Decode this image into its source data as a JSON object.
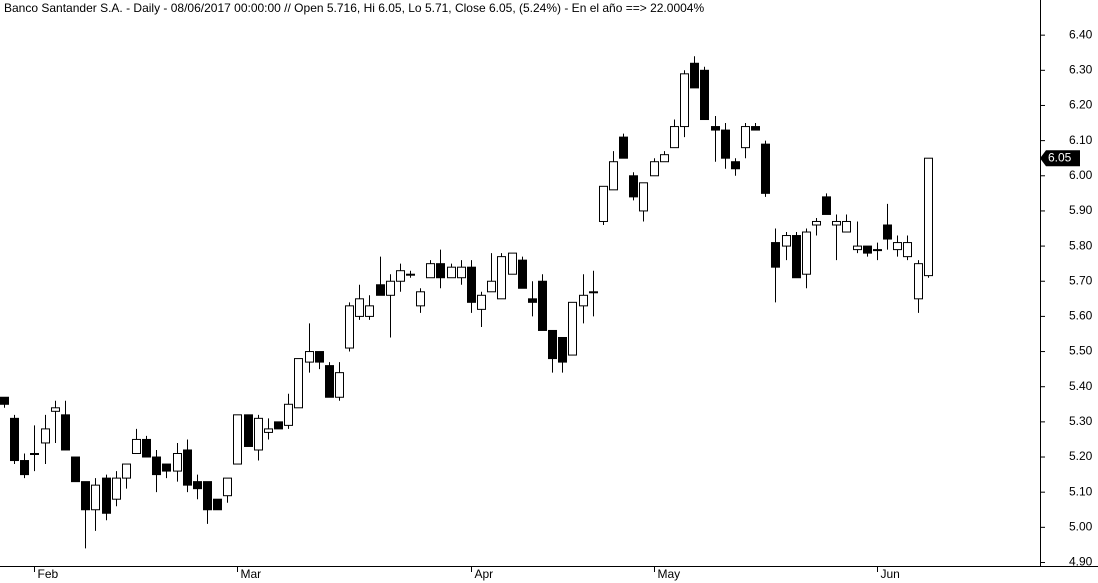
{
  "chart_data": {
    "type": "candlestick",
    "title": "Banco Santander S.A. - Daily - 08/06/2017 00:00:00 // Open 5.716, Hi 6.05, Lo 5.71, Close 6.05, (5.24%) - En el año ==> 22.0004%",
    "categories": [
      null,
      null,
      null,
      "Feb",
      null,
      null,
      null,
      null,
      null,
      null,
      null,
      null,
      null,
      null,
      null,
      null,
      null,
      null,
      null,
      null,
      null,
      null,
      null,
      "Mar",
      null,
      null,
      null,
      null,
      null,
      null,
      null,
      null,
      null,
      null,
      null,
      null,
      null,
      null,
      null,
      null,
      null,
      null,
      null,
      null,
      null,
      null,
      "Apr",
      null,
      null,
      null,
      null,
      null,
      null,
      null,
      null,
      null,
      null,
      null,
      null,
      null,
      null,
      null,
      null,
      null,
      "May",
      null,
      null,
      null,
      null,
      null,
      null,
      null,
      null,
      null,
      null,
      null,
      null,
      null,
      null,
      null,
      null,
      null,
      null,
      null,
      null,
      null,
      "Jun",
      null,
      null,
      null,
      null,
      null
    ],
    "open": [
      5.37,
      5.31,
      5.19,
      5.21,
      5.24,
      5.33,
      5.32,
      5.2,
      5.13,
      5.05,
      5.14,
      5.08,
      5.14,
      5.21,
      5.25,
      5.2,
      5.18,
      5.16,
      5.22,
      5.13,
      5.13,
      5.08,
      5.09,
      5.18,
      5.32,
      5.22,
      5.27,
      5.3,
      5.29,
      5.34,
      5.47,
      5.5,
      5.46,
      5.37,
      5.51,
      5.6,
      5.6,
      5.69,
      5.66,
      5.7,
      5.72,
      5.63,
      5.71,
      5.75,
      5.71,
      5.71,
      5.74,
      5.62,
      5.67,
      5.65,
      5.72,
      5.76,
      5.65,
      5.7,
      5.56,
      5.54,
      5.49,
      5.63,
      5.67,
      5.87,
      5.96,
      6.11,
      6.0,
      5.9,
      6.0,
      6.04,
      6.08,
      6.14,
      6.32,
      6.3,
      6.14,
      6.13,
      6.04,
      6.08,
      6.14,
      6.09,
      5.81,
      5.8,
      5.83,
      5.72,
      5.86,
      5.94,
      5.86,
      5.84,
      5.79,
      5.8,
      5.79,
      5.86,
      5.79,
      5.77,
      5.65,
      5.716
    ],
    "high": [
      5.37,
      5.32,
      5.21,
      5.29,
      5.32,
      5.36,
      5.36,
      5.2,
      5.13,
      5.14,
      5.15,
      5.16,
      5.18,
      5.28,
      5.26,
      5.22,
      5.18,
      5.24,
      5.25,
      5.15,
      5.13,
      5.08,
      5.14,
      5.32,
      5.32,
      5.32,
      5.31,
      5.3,
      5.38,
      5.48,
      5.58,
      5.5,
      5.47,
      5.47,
      5.64,
      5.69,
      5.66,
      5.77,
      5.72,
      5.75,
      5.73,
      5.68,
      5.76,
      5.79,
      5.75,
      5.76,
      5.76,
      5.67,
      5.78,
      5.78,
      5.78,
      5.77,
      5.7,
      5.72,
      5.56,
      5.54,
      5.64,
      5.72,
      5.73,
      5.97,
      6.07,
      6.12,
      6.01,
      5.98,
      6.05,
      6.07,
      6.16,
      6.3,
      6.34,
      6.31,
      6.17,
      6.15,
      6.05,
      6.15,
      6.15,
      6.1,
      5.85,
      5.84,
      5.84,
      5.85,
      5.88,
      5.95,
      5.89,
      5.89,
      5.87,
      5.8,
      5.81,
      5.92,
      5.83,
      5.83,
      5.76,
      6.05
    ],
    "low": [
      5.34,
      5.18,
      5.14,
      5.16,
      5.18,
      5.24,
      5.22,
      5.13,
      4.94,
      4.99,
      5.02,
      5.06,
      5.11,
      5.21,
      5.2,
      5.1,
      5.14,
      5.13,
      5.1,
      5.08,
      5.01,
      5.05,
      5.07,
      5.18,
      5.23,
      5.19,
      5.25,
      5.28,
      5.28,
      5.34,
      5.44,
      5.45,
      5.37,
      5.36,
      5.5,
      5.59,
      5.59,
      5.66,
      5.54,
      5.67,
      5.71,
      5.61,
      5.71,
      5.68,
      5.71,
      5.69,
      5.61,
      5.57,
      5.67,
      5.65,
      5.72,
      5.68,
      5.6,
      5.56,
      5.44,
      5.44,
      5.49,
      5.58,
      5.6,
      5.86,
      5.96,
      6.05,
      5.93,
      5.87,
      6.0,
      6.04,
      6.08,
      6.11,
      6.25,
      6.16,
      6.04,
      6.02,
      6.0,
      6.05,
      6.13,
      5.94,
      5.64,
      5.76,
      5.71,
      5.68,
      5.83,
      5.89,
      5.76,
      5.84,
      5.78,
      5.77,
      5.76,
      5.79,
      5.77,
      5.76,
      5.61,
      5.71
    ],
    "close": [
      5.35,
      5.19,
      5.15,
      5.21,
      5.28,
      5.34,
      5.22,
      5.13,
      5.05,
      5.12,
      5.04,
      5.14,
      5.18,
      5.25,
      5.2,
      5.15,
      5.16,
      5.21,
      5.12,
      5.11,
      5.05,
      5.05,
      5.14,
      5.32,
      5.23,
      5.31,
      5.28,
      5.28,
      5.35,
      5.48,
      5.5,
      5.47,
      5.37,
      5.44,
      5.63,
      5.65,
      5.63,
      5.66,
      5.7,
      5.73,
      5.72,
      5.67,
      5.75,
      5.71,
      5.74,
      5.74,
      5.64,
      5.66,
      5.7,
      5.77,
      5.78,
      5.68,
      5.64,
      5.56,
      5.48,
      5.47,
      5.64,
      5.66,
      5.67,
      5.97,
      6.04,
      6.05,
      5.94,
      5.98,
      6.04,
      6.06,
      6.14,
      6.29,
      6.25,
      6.16,
      6.13,
      6.05,
      6.02,
      6.14,
      6.13,
      5.95,
      5.74,
      5.83,
      5.71,
      5.84,
      5.87,
      5.89,
      5.87,
      5.87,
      5.8,
      5.78,
      5.79,
      5.82,
      5.81,
      5.81,
      5.75,
      6.05
    ],
    "ylim": [
      4.89,
      6.5
    ],
    "yticks": [
      {
        "value": 4.9,
        "label": "4.90"
      },
      {
        "value": 5.0,
        "label": "5.00"
      },
      {
        "value": 5.1,
        "label": "5.10"
      },
      {
        "value": 5.2,
        "label": "5.20"
      },
      {
        "value": 5.3,
        "label": "5.30"
      },
      {
        "value": 5.4,
        "label": "5.40"
      },
      {
        "value": 5.5,
        "label": "5.50"
      },
      {
        "value": 5.6,
        "label": "5.60"
      },
      {
        "value": 5.7,
        "label": "5.70"
      },
      {
        "value": 5.8,
        "label": "5.80"
      },
      {
        "value": 5.9,
        "label": "5.90"
      },
      {
        "value": 6.0,
        "label": "6.00"
      },
      {
        "value": 6.1,
        "label": "6.10"
      },
      {
        "value": 6.2,
        "label": "6.20"
      },
      {
        "value": 6.3,
        "label": "6.30"
      },
      {
        "value": 6.4,
        "label": "6.40"
      }
    ],
    "up_color": "#ffffff",
    "down_color": "#000000"
  }
}
